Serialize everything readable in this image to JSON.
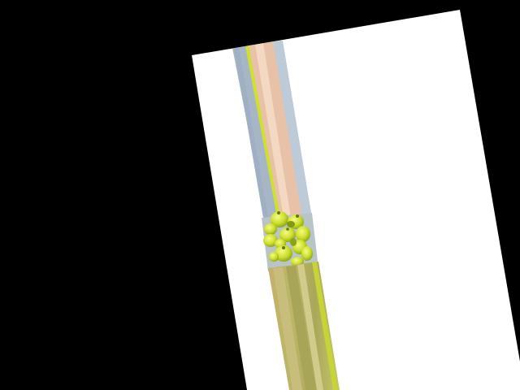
{
  "scene": {
    "background_color": "#000000",
    "page_color": "#ffffff",
    "rotation_deg": -11,
    "subject": "stacked-peppers-with-smeared-stripes",
    "stripe_colors": {
      "steel_blue": "#a4b4c6",
      "peach": "#e8c2a8",
      "pale_blue": "#bccbd7",
      "lime": "#c7d436",
      "olive": "#b7b15c",
      "khaki": "#c8c07a"
    },
    "pepper_colors": {
      "light": "#e3ef49",
      "mid": "#bcd121",
      "dark": "#7f9a16"
    },
    "pepper_count": 14
  }
}
